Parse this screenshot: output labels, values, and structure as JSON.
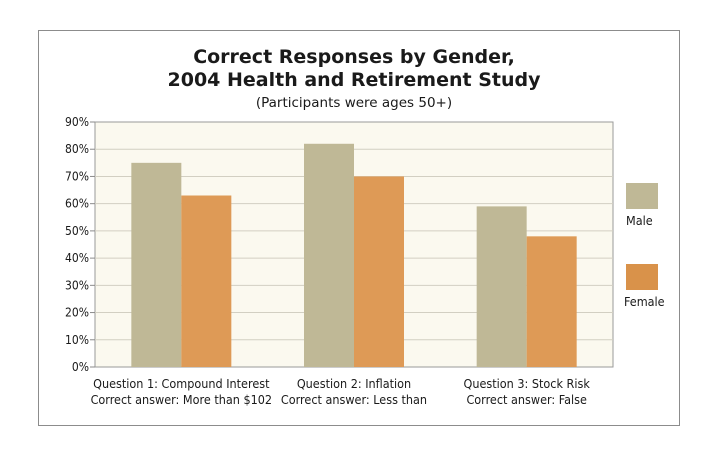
{
  "chart_data": {
    "type": "bar",
    "title_lines": [
      "Correct Responses by Gender,",
      "2004 Health and Retirement Study"
    ],
    "subtitle": "(Participants were ages 50+)",
    "categories": [
      [
        "Question 1: Compound Interest",
        "Correct answer: More than $102"
      ],
      [
        "Question 2: Inflation",
        "Correct answer: Less than"
      ],
      [
        "Question 3: Stock Risk",
        "Correct answer: False"
      ]
    ],
    "series": [
      {
        "name": "Male",
        "color": "#bfb896",
        "values": [
          75,
          82,
          59
        ]
      },
      {
        "name": "Female",
        "color": "#de9a56",
        "values": [
          63,
          70,
          48
        ]
      }
    ],
    "y_ticks": [
      "0%",
      "10%",
      "20%",
      "30%",
      "40%",
      "50%",
      "60%",
      "70%",
      "80%",
      "90%"
    ],
    "ylim": [
      0,
      90
    ],
    "plot_background": "#fbf9ef",
    "grid": true,
    "legend_position": "right"
  }
}
